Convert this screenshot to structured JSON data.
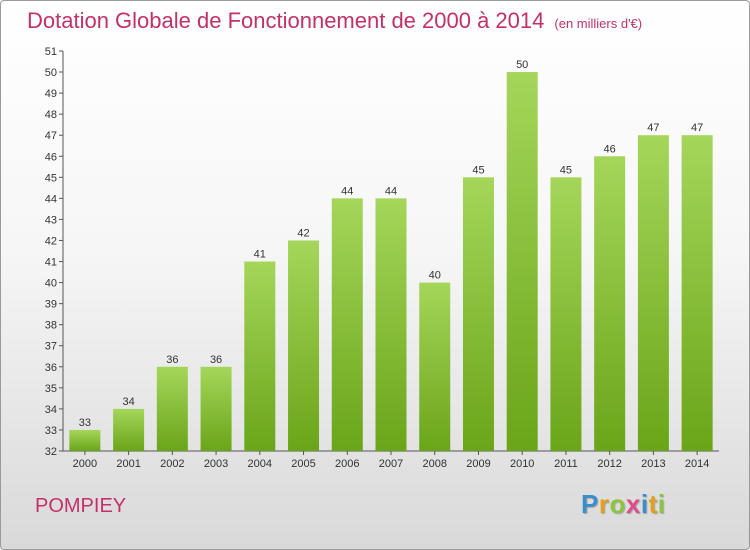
{
  "header": {
    "title": "Dotation Globale de Fonctionnement de 2000 à 2014",
    "unit": "(en milliers d'€)"
  },
  "footer": {
    "commune": "POMPIEY",
    "logo_letters": [
      "P",
      "r",
      "o",
      "x",
      "i",
      "t",
      "i"
    ],
    "logo_colors": [
      "#3a8ec9",
      "#e0a020",
      "#8cc63f",
      "#e04b8a",
      "#3a8ec9",
      "#e0a020",
      "#8cc63f"
    ]
  },
  "colors": {
    "bar_light": "#a5d65a",
    "bar_dark": "#6aa519",
    "accent": "#c4306a"
  },
  "chart_data": {
    "type": "bar",
    "categories": [
      "2000",
      "2001",
      "2002",
      "2003",
      "2004",
      "2005",
      "2006",
      "2007",
      "2008",
      "2009",
      "2010",
      "2011",
      "2012",
      "2013",
      "2014"
    ],
    "values": [
      33,
      34,
      36,
      36,
      41,
      42,
      44,
      44,
      40,
      45,
      50,
      45,
      46,
      47,
      47
    ],
    "ylim": [
      32,
      51
    ],
    "yticks": [
      32,
      33,
      34,
      35,
      36,
      37,
      38,
      39,
      40,
      41,
      42,
      43,
      44,
      45,
      46,
      47,
      48,
      49,
      50,
      51
    ],
    "grid": false,
    "title": "Dotation Globale de Fonctionnement de 2000 à 2014"
  }
}
